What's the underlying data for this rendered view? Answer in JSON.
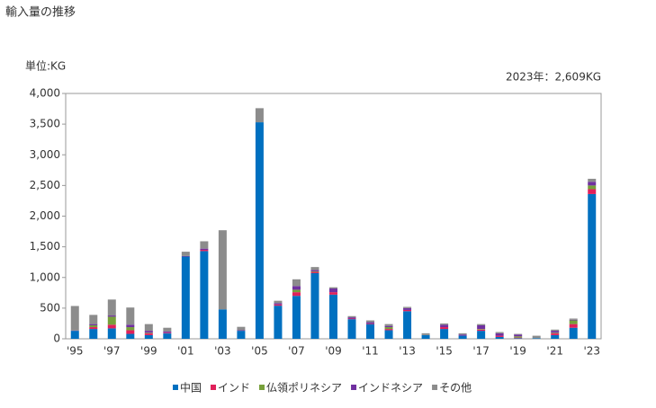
{
  "chart_data": {
    "type": "stacked_bar",
    "title": "輸入量の推移",
    "y_label": "単位:KG",
    "annotation": "2023年：2,609KG",
    "categories": [
      "'95",
      null,
      "'97",
      null,
      "'99",
      null,
      "'01",
      null,
      "'03",
      null,
      "'05",
      null,
      "'07",
      null,
      "'09",
      null,
      "'11",
      null,
      "'13",
      null,
      "'15",
      null,
      "'17",
      null,
      "'19",
      null,
      "'21",
      null,
      "'23"
    ],
    "series": [
      {
        "name": "中国",
        "color": "#0070c0",
        "values": [
          130,
          160,
          170,
          80,
          60,
          90,
          1340,
          1430,
          480,
          130,
          3530,
          540,
          700,
          1070,
          720,
          320,
          240,
          140,
          450,
          60,
          160,
          50,
          130,
          30,
          10,
          10,
          60,
          180,
          2360
        ]
      },
      {
        "name": "インド",
        "color": "#e0205a",
        "values": [
          0,
          30,
          60,
          60,
          30,
          10,
          0,
          20,
          0,
          0,
          0,
          20,
          60,
          20,
          40,
          10,
          10,
          20,
          20,
          0,
          30,
          0,
          20,
          20,
          10,
          0,
          30,
          60,
          80
        ]
      },
      {
        "name": "仏領ポリネシア",
        "color": "#77a03a",
        "values": [
          0,
          30,
          130,
          50,
          10,
          0,
          0,
          0,
          0,
          0,
          0,
          0,
          40,
          10,
          0,
          0,
          0,
          30,
          0,
          0,
          0,
          0,
          10,
          0,
          20,
          0,
          10,
          60,
          60
        ]
      },
      {
        "name": "インドネシア",
        "color": "#7030a0",
        "values": [
          5,
          20,
          20,
          40,
          30,
          20,
          10,
          20,
          0,
          10,
          0,
          20,
          60,
          20,
          60,
          20,
          20,
          20,
          30,
          0,
          40,
          20,
          60,
          40,
          30,
          0,
          30,
          10,
          60
        ]
      },
      {
        "name": "その他",
        "color": "#8c8c8c",
        "values": [
          400,
          150,
          260,
          280,
          110,
          60,
          70,
          120,
          1290,
          55,
          230,
          40,
          110,
          50,
          20,
          20,
          30,
          30,
          20,
          30,
          20,
          20,
          20,
          20,
          10,
          40,
          20,
          20,
          49
        ]
      }
    ],
    "ylim": [
      0,
      4000
    ],
    "yticks": [
      0,
      {
        "value": 500,
        "label": "500"
      },
      {
        "value": 1000,
        "label": "1,000"
      },
      {
        "value": 1500,
        "label": "1,500"
      },
      {
        "value": 2000,
        "label": "2,000"
      },
      {
        "value": 2500,
        "label": "2,500"
      },
      {
        "value": 3000,
        "label": "3,000"
      },
      {
        "value": 3500,
        "label": "3,500"
      },
      {
        "value": 4000,
        "label": "4,000"
      }
    ],
    "legend": "bottom"
  }
}
